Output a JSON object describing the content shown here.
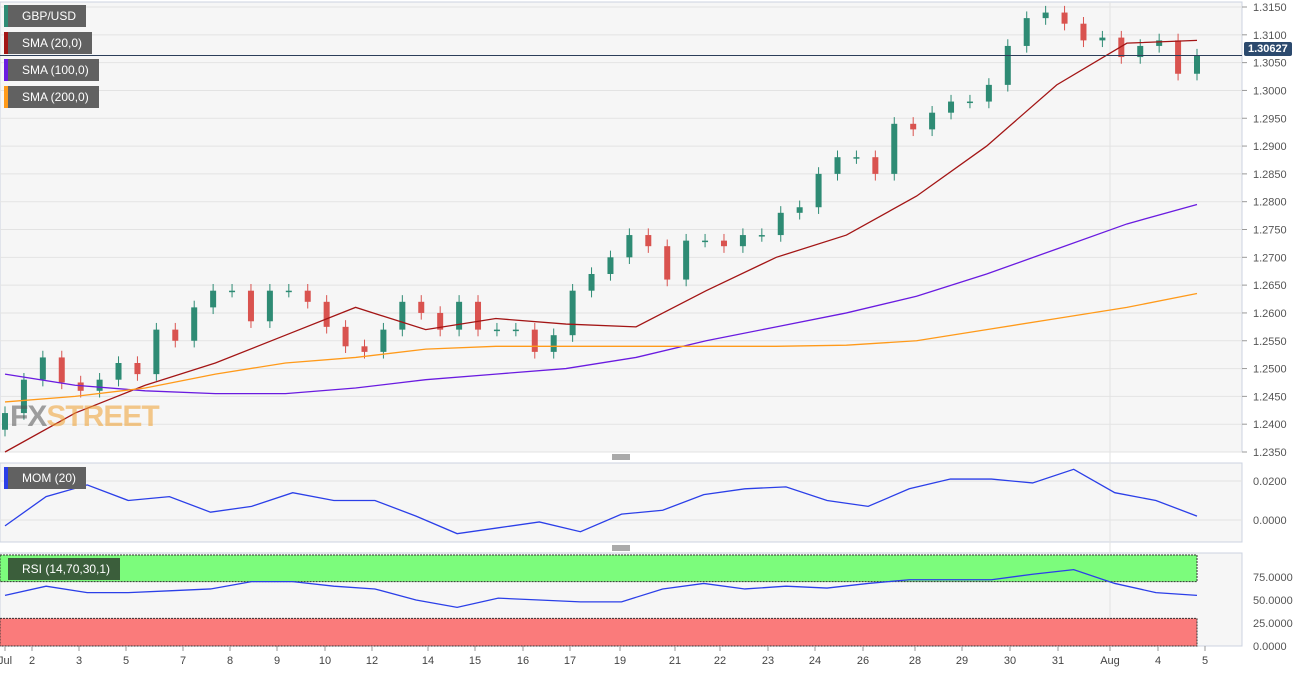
{
  "legend": {
    "symbol": "GBP/USD",
    "sma20": "SMA (20,0)",
    "sma100": "SMA (100,0)",
    "sma200": "SMA (200,0)",
    "mom": "MOM (20)",
    "rsi": "RSI (14,70,30,1)"
  },
  "logo": {
    "part1": "FX",
    "part2": "STREET"
  },
  "current_price": "1.30627",
  "colors": {
    "up": "#2e8b74",
    "down": "#d9534f",
    "sma20": "#a31515",
    "sma100": "#6a1be0",
    "sma200": "#ff9a1a",
    "mom": "#2b3fe8",
    "rsi": "#2b3fe8",
    "overbought": "#7cfc7c",
    "oversold": "#fa7b7b"
  },
  "chart_data": [
    {
      "type": "candlestick",
      "title": "GBP/USD",
      "ylim": [
        1.235,
        1.315
      ],
      "yticks": [
        "1.3150",
        "1.3100",
        "1.3050",
        "1.3000",
        "1.2950",
        "1.2900",
        "1.2850",
        "1.2800",
        "1.2750",
        "1.2700",
        "1.2650",
        "1.2600",
        "1.2550",
        "1.2500",
        "1.2450",
        "1.2400",
        "1.2350"
      ],
      "xticks": [
        "Jul",
        "2",
        "3",
        "5",
        "7",
        "8",
        "9",
        "10",
        "12",
        "14",
        "15",
        "16",
        "17",
        "19",
        "21",
        "22",
        "23",
        "24",
        "26",
        "28",
        "29",
        "30",
        "31",
        "Aug",
        "4",
        "5"
      ],
      "closes": [
        1.242,
        1.248,
        1.252,
        1.2475,
        1.246,
        1.248,
        1.251,
        1.249,
        1.257,
        1.255,
        1.261,
        1.264,
        1.264,
        1.2585,
        1.264,
        1.264,
        1.262,
        1.2575,
        1.254,
        1.253,
        1.257,
        1.262,
        1.26,
        1.257,
        1.262,
        1.257,
        1.257,
        1.257,
        1.253,
        1.256,
        1.264,
        1.267,
        1.27,
        1.274,
        1.272,
        1.266,
        1.273,
        1.273,
        1.272,
        1.274,
        1.274,
        1.278,
        1.279,
        1.285,
        1.288,
        1.288,
        1.285,
        1.294,
        1.293,
        1.296,
        1.298,
        1.298,
        1.301,
        1.308,
        1.313,
        1.314,
        1.312,
        1.309,
        1.3095,
        1.306,
        1.308,
        1.309,
        1.303,
        1.30627
      ],
      "series": [
        {
          "name": "SMA (20,0)",
          "values": [
            1.235,
            1.242,
            1.247,
            1.251,
            1.256,
            1.261,
            1.257,
            1.259,
            1.258,
            1.2575,
            1.264,
            1.27,
            1.274,
            1.281,
            1.29,
            1.301,
            1.3085,
            1.309
          ]
        },
        {
          "name": "SMA (100,0)",
          "values": [
            1.249,
            1.247,
            1.246,
            1.2455,
            1.2455,
            1.2465,
            1.248,
            1.249,
            1.25,
            1.252,
            1.255,
            1.2575,
            1.26,
            1.263,
            1.267,
            1.2715,
            1.276,
            1.2795
          ]
        },
        {
          "name": "SMA (200,0)",
          "values": [
            1.244,
            1.245,
            1.2465,
            1.249,
            1.251,
            1.252,
            1.2535,
            1.254,
            1.254,
            1.254,
            1.254,
            1.254,
            1.2542,
            1.255,
            1.257,
            1.259,
            1.261,
            1.2635
          ]
        }
      ]
    },
    {
      "type": "line",
      "title": "MOM (20)",
      "yticks": [
        "0.0200",
        "0.0000"
      ],
      "values": [
        -0.003,
        0.012,
        0.018,
        0.01,
        0.012,
        0.004,
        0.007,
        0.014,
        0.01,
        0.01,
        0.002,
        -0.007,
        -0.004,
        -0.001,
        -0.006,
        0.003,
        0.005,
        0.013,
        0.016,
        0.017,
        0.01,
        0.007,
        0.016,
        0.021,
        0.021,
        0.019,
        0.026,
        0.014,
        0.01,
        0.002
      ]
    },
    {
      "type": "line",
      "title": "RSI (14,70,30,1)",
      "ylim": [
        0,
        100
      ],
      "yticks": [
        "75.0000",
        "50.0000",
        "25.0000",
        "0.0000"
      ],
      "overbought": 70,
      "oversold": 30,
      "values": [
        55,
        65,
        58,
        58,
        60,
        62,
        70,
        70,
        65,
        62,
        50,
        42,
        52,
        50,
        48,
        48,
        62,
        68,
        62,
        65,
        63,
        68,
        72,
        72,
        72,
        78,
        83,
        68,
        58,
        55
      ]
    }
  ]
}
